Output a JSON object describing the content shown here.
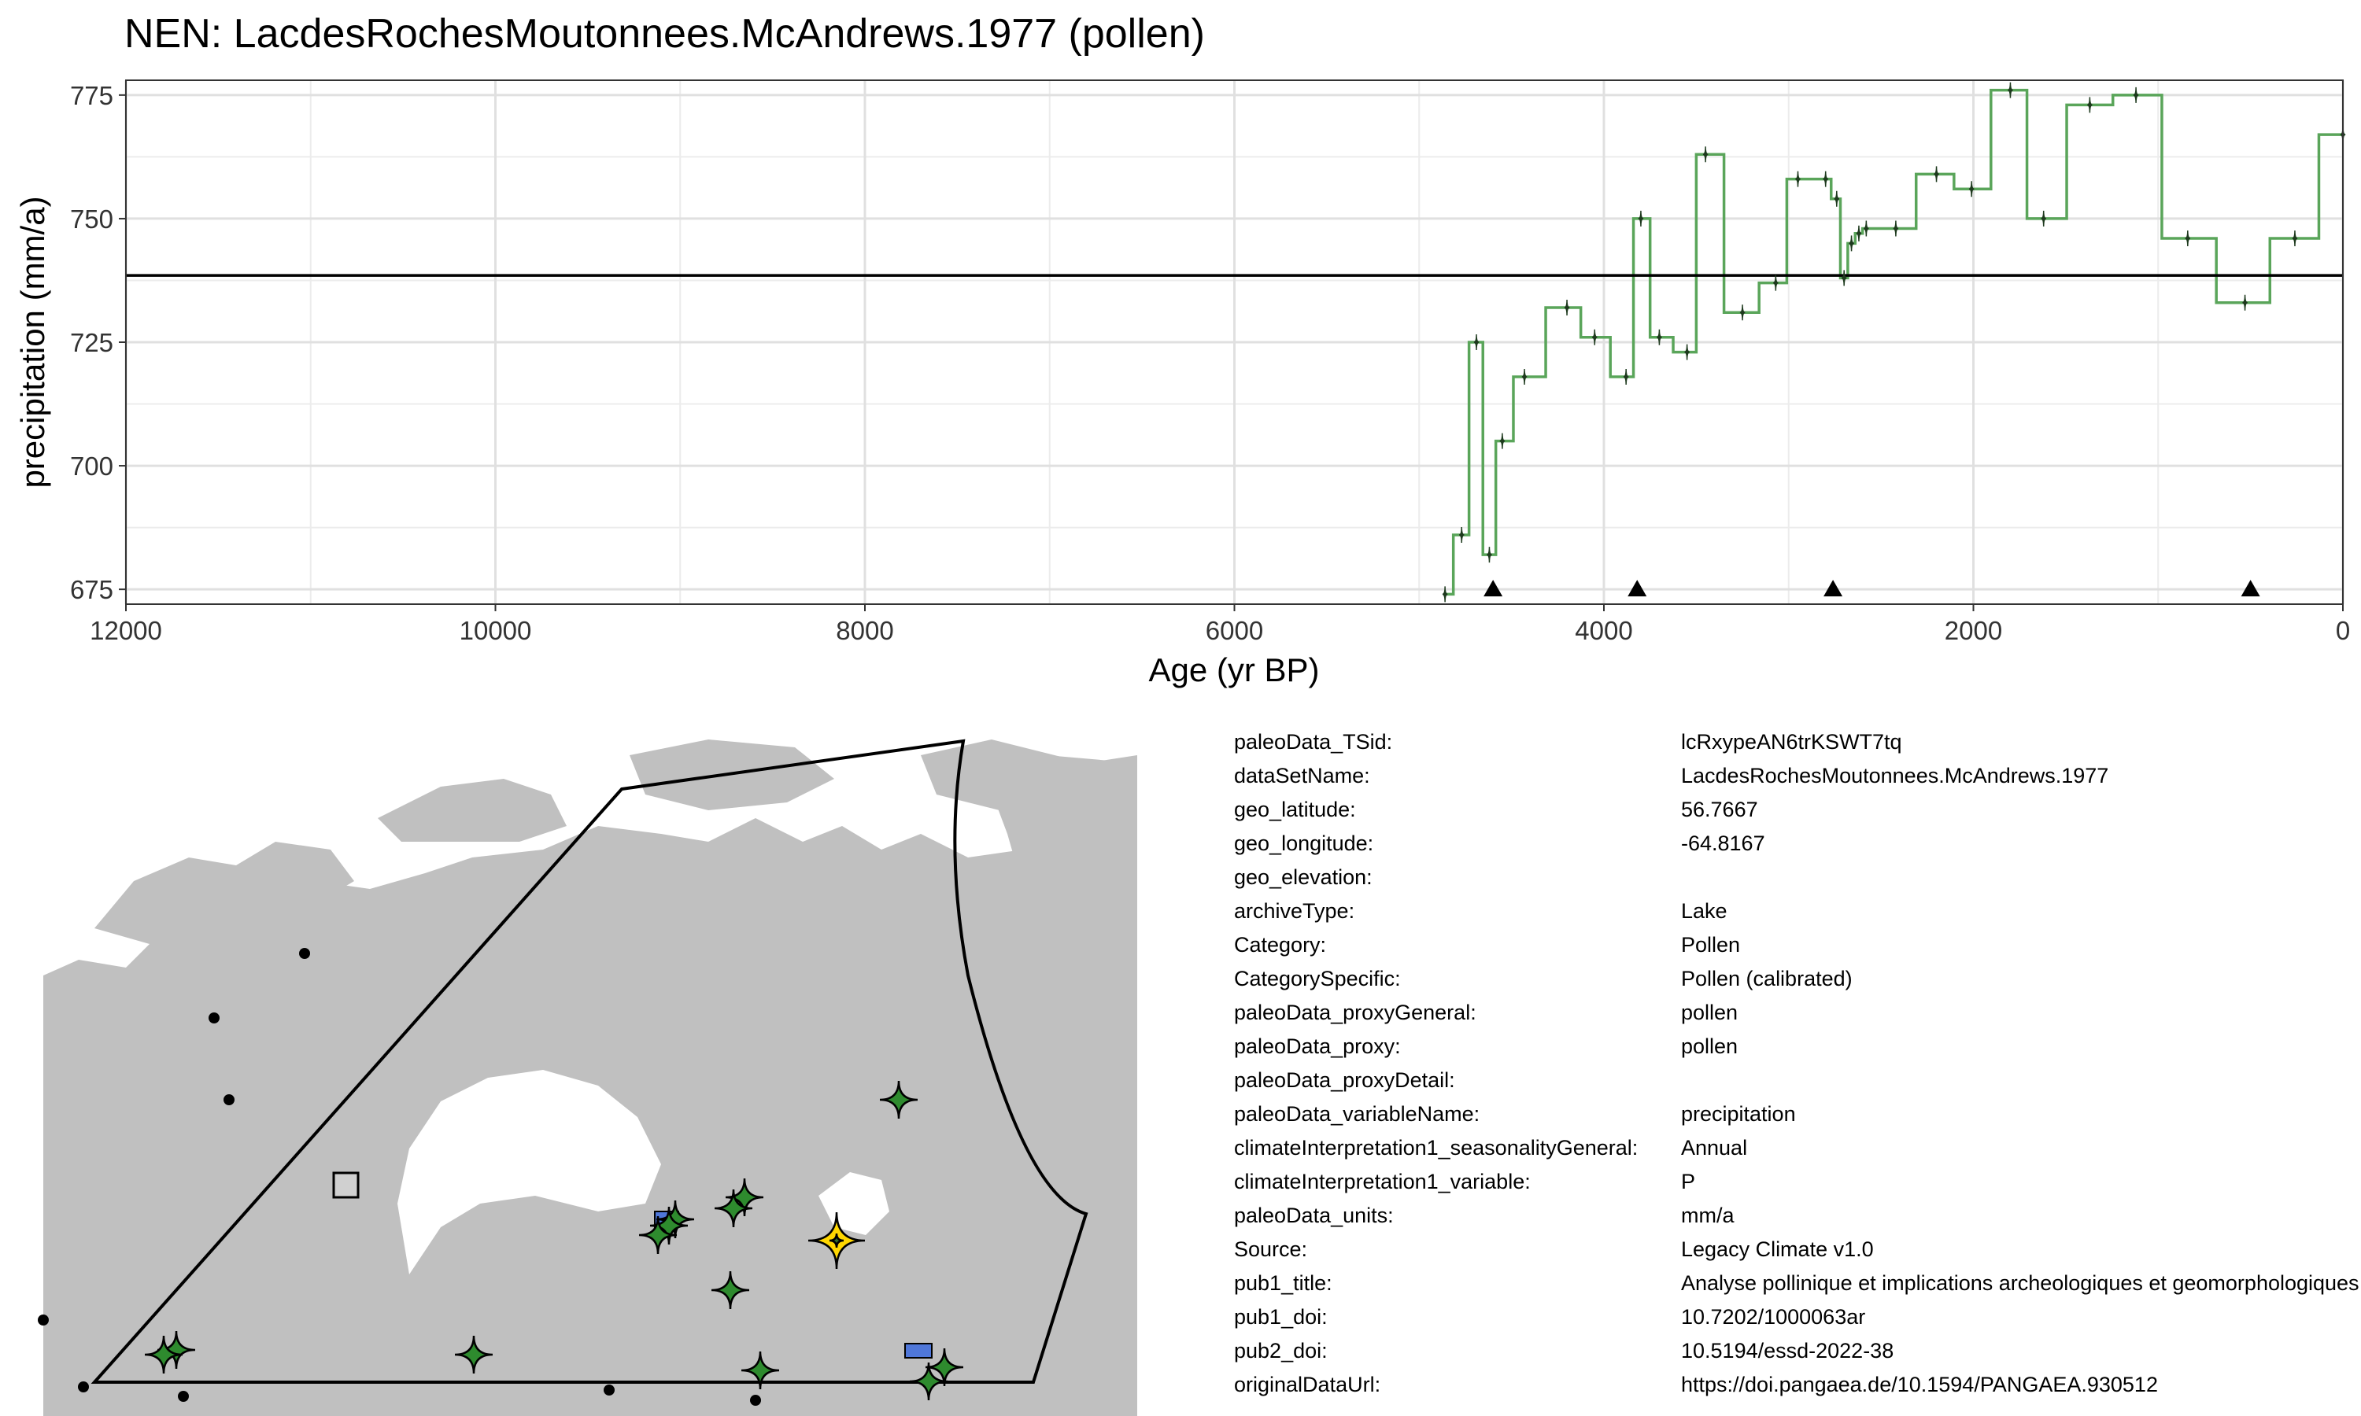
{
  "chart_data": {
    "type": "line",
    "title": "NEN: LacdesRochesMoutonnees.McAndrews.1977 (pollen)",
    "xlabel": "Age (yr BP)",
    "ylabel": "precipitation (mm/a)",
    "xlim": [
      12000,
      0
    ],
    "ylim": [
      672,
      778
    ],
    "x_reversed": true,
    "grid": true,
    "x_ticks": [
      12000,
      10000,
      8000,
      6000,
      4000,
      2000,
      0
    ],
    "y_ticks": [
      675,
      700,
      725,
      750,
      775
    ],
    "step_style": "mid",
    "series": [
      {
        "color": "#5aa55a",
        "marker_color": "#1e3a1e",
        "x": [
          4860,
          4770,
          4690,
          4620,
          4550,
          4430,
          4200,
          4050,
          3880,
          3800,
          3700,
          3550,
          3450,
          3250,
          3070,
          2950,
          2800,
          2740,
          2700,
          2660,
          2620,
          2580,
          2420,
          2200,
          2010,
          1800,
          1620,
          1370,
          1120,
          840,
          530,
          260,
          0
        ],
        "y": [
          674,
          686,
          725,
          682,
          705,
          718,
          732,
          726,
          718,
          750,
          726,
          723,
          763,
          731,
          737,
          758,
          758,
          754,
          738,
          745,
          747,
          748,
          748,
          759,
          756,
          776,
          750,
          773,
          775,
          746,
          733,
          746,
          767
        ]
      },
      {
        "color": "#000000",
        "x": [
          12000,
          0
        ],
        "y": [
          738.5,
          738.5
        ]
      }
    ],
    "triangle_markers": {
      "x": [
        4600,
        3820,
        2760,
        500
      ],
      "y": 675,
      "color": "#000000"
    }
  },
  "map": {
    "land_color": "#c0c0c0",
    "water_color": "#ffffff",
    "region_outline_color": "#000000",
    "site_colors": {
      "proxy_sites": "#2e8b2e",
      "highlight_site": "#ffd700",
      "other_archive": "#4f77d9",
      "undated": "#d0d0d0",
      "outside_points": "#000000"
    }
  },
  "metadata": [
    {
      "key": "paleoData_TSid:",
      "value": "lcRxypeAN6trKSWT7tq"
    },
    {
      "key": "dataSetName:",
      "value": "LacdesRochesMoutonnees.McAndrews.1977"
    },
    {
      "key": "geo_latitude:",
      "value": "56.7667"
    },
    {
      "key": "geo_longitude:",
      "value": "-64.8167"
    },
    {
      "key": "geo_elevation:",
      "value": ""
    },
    {
      "key": "archiveType:",
      "value": "Lake"
    },
    {
      "key": "Category:",
      "value": "Pollen"
    },
    {
      "key": "CategorySpecific:",
      "value": "Pollen (calibrated)"
    },
    {
      "key": "paleoData_proxyGeneral:",
      "value": "pollen"
    },
    {
      "key": "paleoData_proxy:",
      "value": "pollen"
    },
    {
      "key": "paleoData_proxyDetail:",
      "value": ""
    },
    {
      "key": "paleoData_variableName:",
      "value": "precipitation"
    },
    {
      "key": "climateInterpretation1_seasonalityGeneral:",
      "value": "Annual"
    },
    {
      "key": "climateInterpretation1_variable:",
      "value": "P"
    },
    {
      "key": "paleoData_units:",
      "value": "mm/a"
    },
    {
      "key": "Source:",
      "value": "Legacy Climate v1.0"
    },
    {
      "key": "pub1_title:",
      "value": "Analyse pollinique et implications archeologiques et geomorphologiques"
    },
    {
      "key": "pub1_doi:",
      "value": "10.7202/1000063ar"
    },
    {
      "key": "pub2_doi:",
      "value": "10.5194/essd-2022-38"
    },
    {
      "key": "originalDataUrl:",
      "value": "https://doi.pangaea.de/10.1594/PANGAEA.930512"
    }
  ]
}
